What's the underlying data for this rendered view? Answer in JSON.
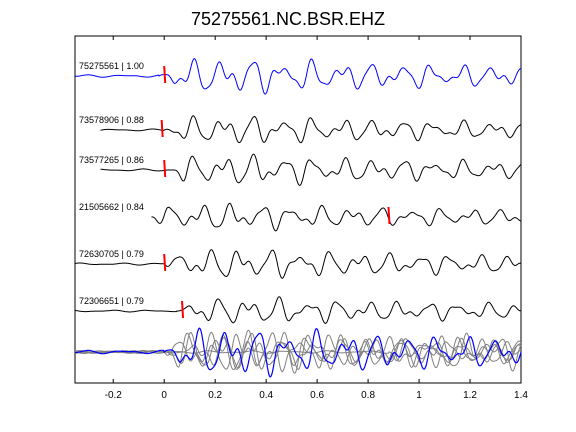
{
  "title": "75275561.NC.BSR.EHZ",
  "chart_data": {
    "type": "line",
    "title": "75275561.NC.BSR.EHZ",
    "xlabel": "",
    "ylabel": "",
    "xlim": [
      -0.35,
      1.4
    ],
    "grid": false,
    "legend": "none",
    "x_ticks": [
      -0.2,
      0,
      0.2,
      0.4,
      0.6,
      0.8,
      1,
      1.2,
      1.4
    ],
    "x_tick_labels": [
      "-0.2",
      "0",
      "0.2",
      "0.4",
      "0.6",
      "0.8",
      "1",
      "1.2",
      "1.4"
    ],
    "traces": [
      {
        "label": "75275561 | 1.00",
        "event_id": "75275561",
        "correlation": 1.0,
        "color": "#0000ff",
        "pick_time": 0.0,
        "pick_color": "#ff0000",
        "t_start": -0.35,
        "seed": 1,
        "amplitude": 1.0,
        "quiet_until": -0.02
      },
      {
        "label": "73578906 | 0.88",
        "event_id": "73578906",
        "correlation": 0.88,
        "color": "#000000",
        "pick_time": -0.01,
        "pick_color": "#ff0000",
        "t_start": -0.25,
        "seed": 2,
        "amplitude": 0.8,
        "quiet_until": 0.0
      },
      {
        "label": "73577265 | 0.86",
        "event_id": "73577265",
        "correlation": 0.86,
        "color": "#000000",
        "pick_time": 0.0,
        "pick_color": "#ff0000",
        "t_start": -0.25,
        "seed": 3,
        "amplitude": 0.85,
        "quiet_until": 0.02
      },
      {
        "label": "21505662 | 0.84",
        "event_id": "21505662",
        "correlation": 0.84,
        "color": "#000000",
        "pick_time": 0.88,
        "pick_color": "#ff0000",
        "t_start": -0.05,
        "seed": 4,
        "amplitude": 0.75,
        "quiet_until": -0.05
      },
      {
        "label": "72630705 | 0.79",
        "event_id": "72630705",
        "correlation": 0.79,
        "color": "#000000",
        "pick_time": 0.0,
        "pick_color": "#ff0000",
        "t_start": -0.35,
        "seed": 5,
        "amplitude": 0.85,
        "quiet_until": 0.0
      },
      {
        "label": "72306651 | 0.79",
        "event_id": "72306651",
        "correlation": 0.79,
        "color": "#000000",
        "pick_time": 0.07,
        "pick_color": "#ff0000",
        "t_start": -0.35,
        "seed": 6,
        "amplitude": 0.75,
        "quiet_until": 0.05
      }
    ],
    "stack": {
      "label": "",
      "overlay_color": "#808080",
      "reference_color": "#0000ff"
    }
  }
}
